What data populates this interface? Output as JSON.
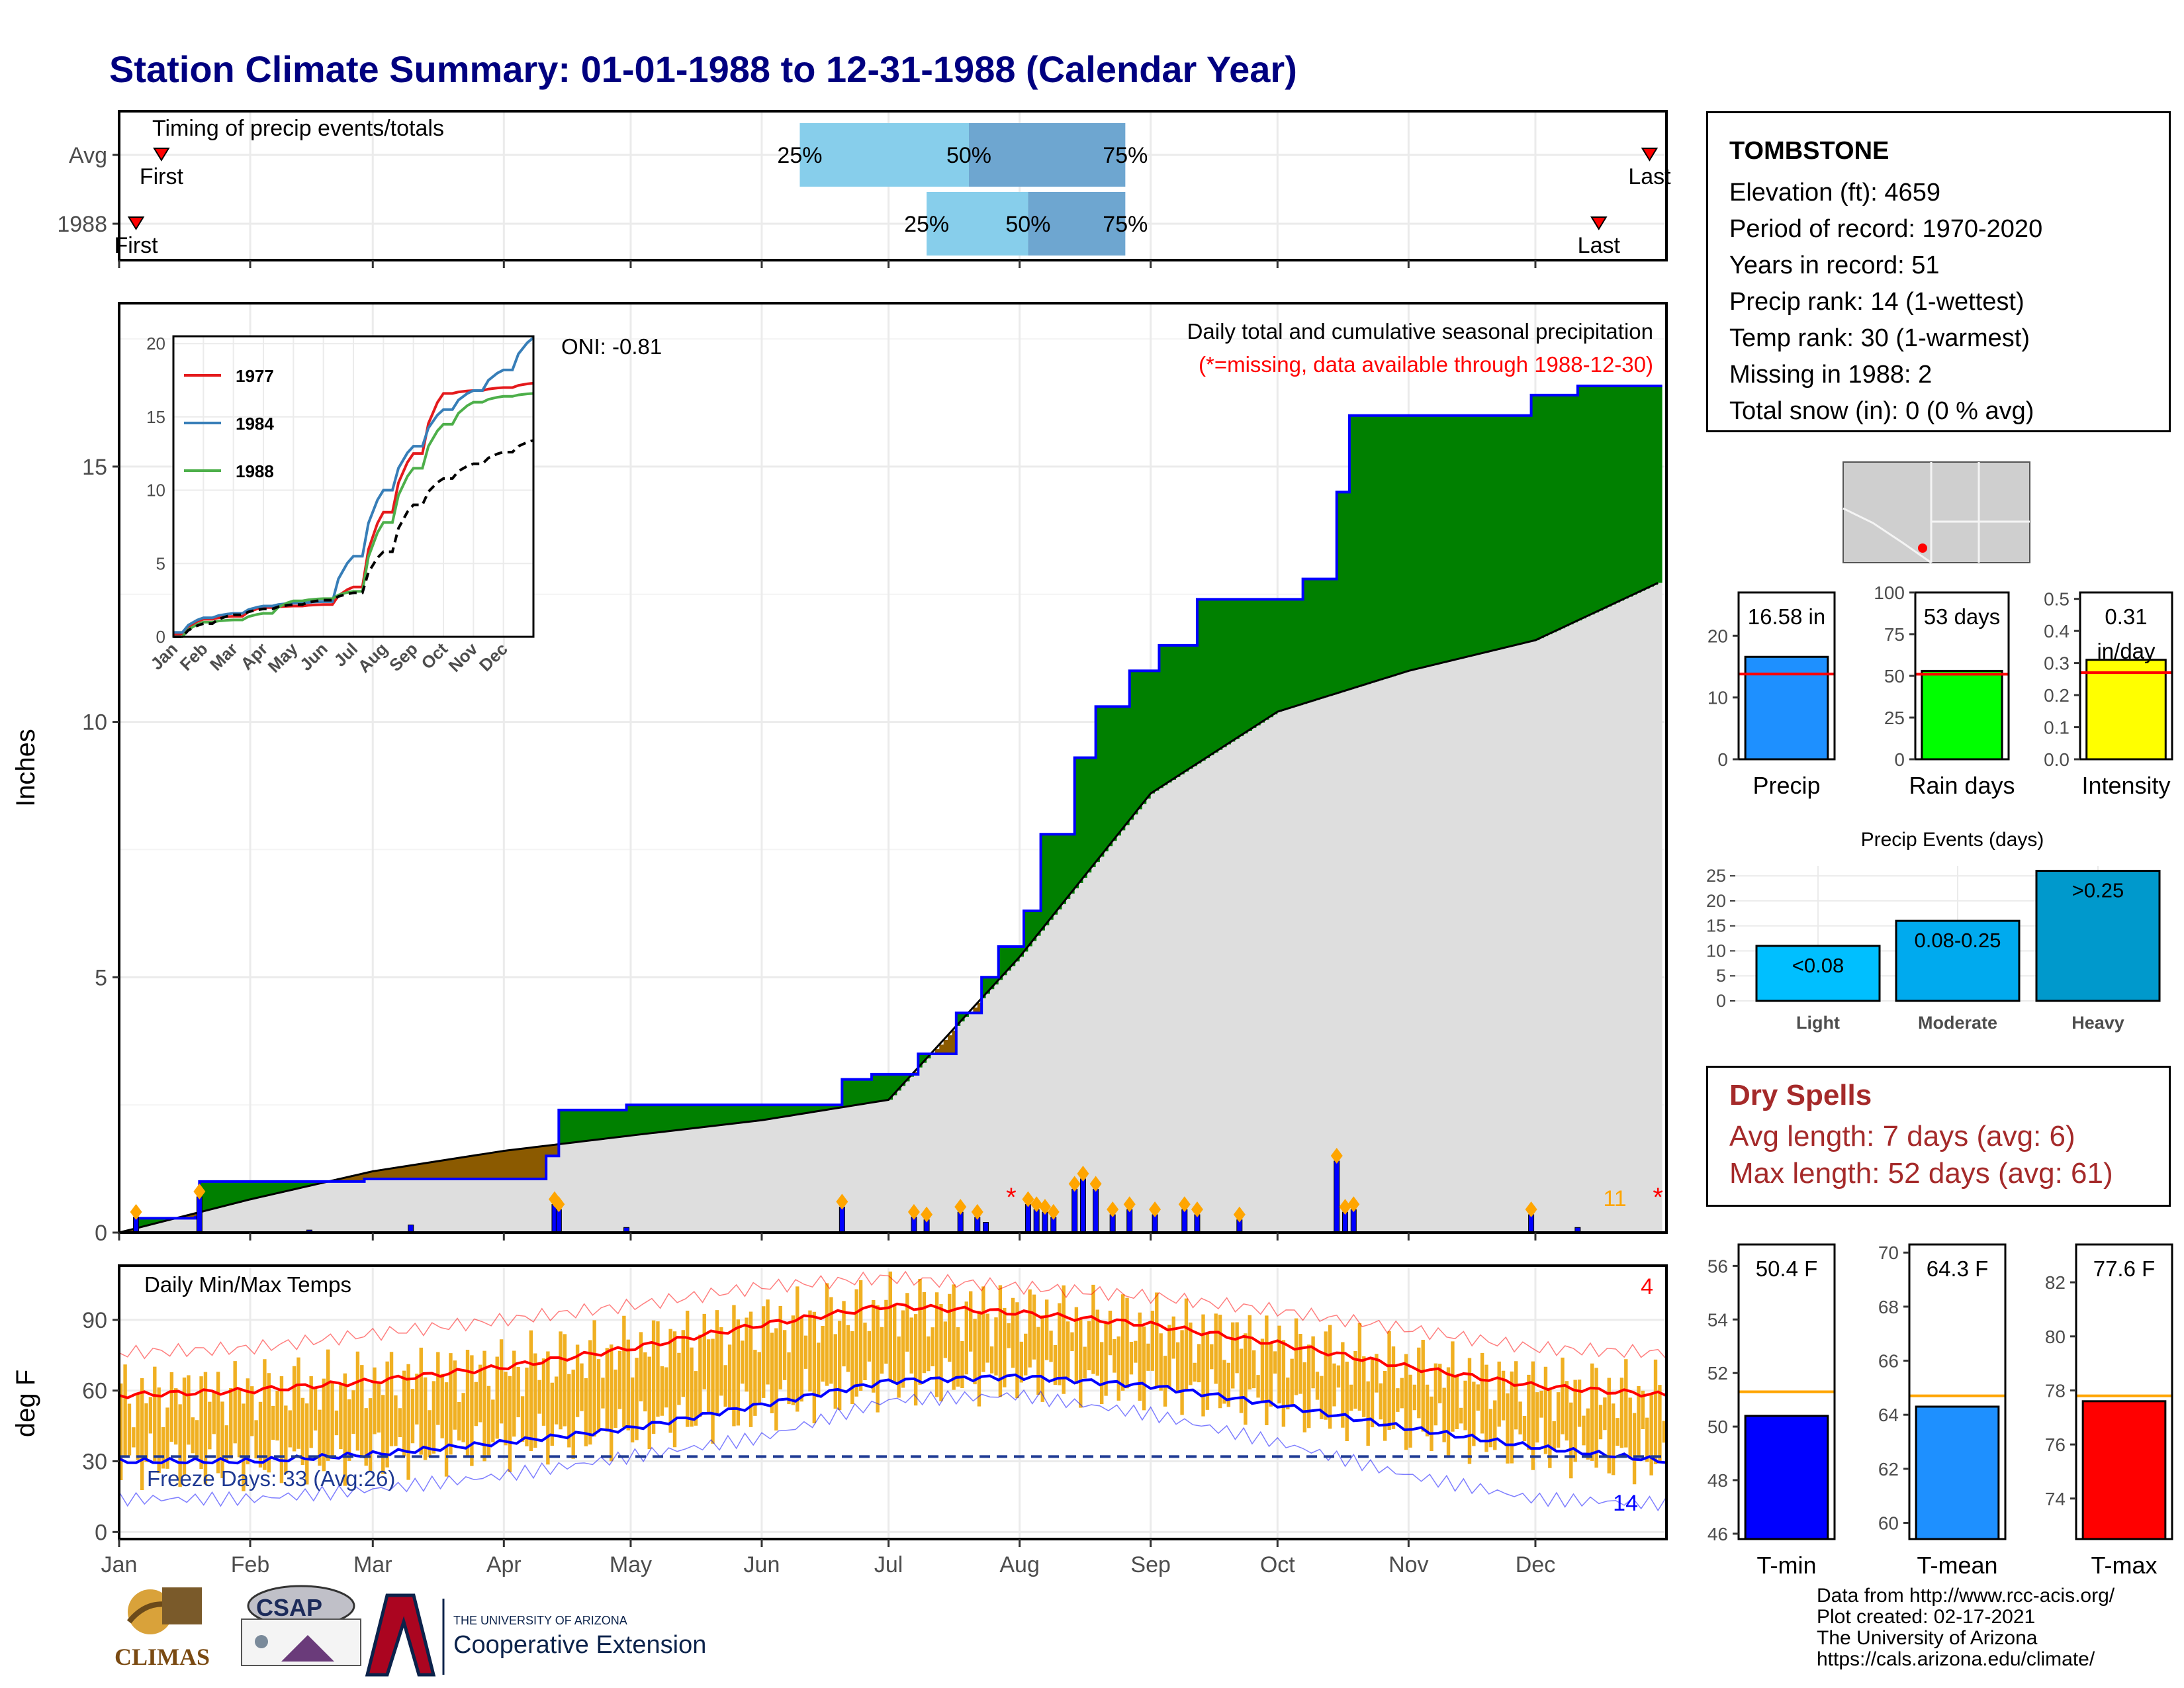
{
  "title": "Station Climate Summary: 01-01-1988 to 12-31-1988 (Calendar Year)",
  "timing_panel": {
    "title": "Timing of precip events/totals",
    "rows": [
      {
        "label": "Avg",
        "first_label": "First",
        "last_label": "Last",
        "first_date": "1988-01-11",
        "last_date": "1988-12-28",
        "p25": "1988-06-10",
        "p50": "1988-07-20",
        "p75": "1988-08-26",
        "p25_label": "25%",
        "p50_label": "50%",
        "p75_label": "75%"
      },
      {
        "label": "1988",
        "first_label": "First",
        "last_label": "Last",
        "first_date": "1988-01-05",
        "last_date": "1988-12-16",
        "p25": "1988-07-10",
        "p50": "1988-08-03",
        "p75": "1988-08-26",
        "p25_label": "25%",
        "p50_label": "50%",
        "p75_label": "75%"
      }
    ],
    "colors": {
      "light": "#87ceeb",
      "dark": "#6ea6d0",
      "marker": "#ff0000"
    }
  },
  "precip_panel": {
    "ylabel": "Inches",
    "annotation_title": "Daily total and cumulative seasonal precipitation",
    "annotation_note": "(*=missing, data available through 1988-12-30)",
    "oni": "ONI: -0.81",
    "corner_count": "11",
    "star": "*",
    "colors": {
      "wet": "#008000",
      "dry": "#8b5a00",
      "normal": "#dedede",
      "line": "#0000ff",
      "daily": "#0000ff",
      "marker": "#ffa500",
      "missing": "#ff0000"
    }
  },
  "inset_panel": {
    "legend": [
      "1977",
      "1984",
      "1988"
    ],
    "colors": {
      "1977": "#e41a1c",
      "1984": "#377eb8",
      "1988": "#4daf4a",
      "avg": "#000000"
    }
  },
  "temp_panel": {
    "title": "Daily Min/Max Temps",
    "ylabel": "deg F",
    "freeze": "Freeze Days: 33 (Avg:26)",
    "count_hot": "4",
    "count_cold": "14",
    "colors": {
      "bar": "#f0b022",
      "max": "#ff0000",
      "min": "#0000ff",
      "freeze": "#1f3a93"
    }
  },
  "station": {
    "name": "TOMBSTONE",
    "elevation": "Elevation (ft): 4659",
    "period": "Period of record: 1970-2020",
    "years": "Years in record: 51",
    "precip_rank": "Precip rank: 14 (1-wettest)",
    "temp_rank": "Temp rank: 30 (1-warmest)",
    "missing": "Missing in 1988: 2",
    "snow": "Total snow (in): 0 (0 % avg)"
  },
  "dry_spells": {
    "title": "Dry Spells",
    "avg": "Avg length: 7 days (avg: 6)",
    "max": "Max length: 52 days (avg: 61)"
  },
  "footer": {
    "line1": "Data from http://www.rcc-acis.org/",
    "line2": "Plot created: 02-17-2021",
    "line3": "The University of Arizona",
    "line4": "https://cals.arizona.edu/climate/"
  },
  "logos": {
    "climas": "CLIMAS",
    "csap": "CSAP",
    "ua_small": "THE UNIVERSITY OF ARIZONA",
    "ua_big": "Cooperative Extension"
  },
  "chart_data": [
    {
      "type": "bar",
      "name": "timing",
      "x_axis": "date",
      "categories": [
        "Avg",
        "1988"
      ],
      "xlim": [
        "1988-01-01",
        "1988-12-31"
      ],
      "series": [
        {
          "first": "1988-01-11",
          "p25": "1988-06-10",
          "p50": "1988-07-20",
          "p75": "1988-08-26",
          "last": "1988-12-28"
        },
        {
          "first": "1988-01-05",
          "p25": "1988-07-10",
          "p50": "1988-08-03",
          "p75": "1988-08-26",
          "last": "1988-12-16"
        }
      ]
    },
    {
      "type": "area",
      "name": "cumulative-precip",
      "ylabel": "Inches",
      "ylim": [
        0,
        18.2
      ],
      "yticks": [
        0,
        5,
        10,
        15
      ],
      "xticks": [
        "Jan",
        "Feb",
        "Mar",
        "Apr",
        "May",
        "Jun",
        "Jul",
        "Aug",
        "Sep",
        "Oct",
        "Nov",
        "Dec"
      ],
      "normal_cumulative_by_month_start": [
        0,
        0.65,
        1.2,
        1.6,
        1.9,
        2.2,
        2.6,
        5.4,
        8.6,
        10.2,
        11.0,
        11.6,
        12.8
      ],
      "observed_cumulative": [
        {
          "date": "1988-01-01",
          "value": 0
        },
        {
          "date": "1988-01-05",
          "value": 0.28
        },
        {
          "date": "1988-01-19",
          "value": 0.3
        },
        {
          "date": "1988-01-20",
          "value": 1.0
        },
        {
          "date": "1988-02-28",
          "value": 1.05
        },
        {
          "date": "1988-04-11",
          "value": 1.5
        },
        {
          "date": "1988-04-14",
          "value": 2.4
        },
        {
          "date": "1988-04-30",
          "value": 2.5
        },
        {
          "date": "1988-06-20",
          "value": 3.0
        },
        {
          "date": "1988-06-27",
          "value": 3.1
        },
        {
          "date": "1988-07-08",
          "value": 3.5
        },
        {
          "date": "1988-07-17",
          "value": 4.3
        },
        {
          "date": "1988-07-23",
          "value": 5.0
        },
        {
          "date": "1988-07-27",
          "value": 5.6
        },
        {
          "date": "1988-08-02",
          "value": 6.3
        },
        {
          "date": "1988-08-06",
          "value": 7.8
        },
        {
          "date": "1988-08-14",
          "value": 9.3
        },
        {
          "date": "1988-08-19",
          "value": 10.3
        },
        {
          "date": "1988-08-27",
          "value": 11.0
        },
        {
          "date": "1988-09-03",
          "value": 11.5
        },
        {
          "date": "1988-09-12",
          "value": 12.4
        },
        {
          "date": "1988-10-07",
          "value": 12.8
        },
        {
          "date": "1988-10-15",
          "value": 14.5
        },
        {
          "date": "1988-10-18",
          "value": 16.0
        },
        {
          "date": "1988-11-30",
          "value": 16.4
        },
        {
          "date": "1988-12-11",
          "value": 16.58
        },
        {
          "date": "1988-12-30",
          "value": 16.58
        }
      ],
      "daily_events": [
        {
          "date": "1988-01-05",
          "value": 0.3
        },
        {
          "date": "1988-01-20",
          "value": 0.7
        },
        {
          "date": "1988-02-15",
          "value": 0.05
        },
        {
          "date": "1988-03-10",
          "value": 0.15
        },
        {
          "date": "1988-04-13",
          "value": 0.55
        },
        {
          "date": "1988-04-14",
          "value": 0.45
        },
        {
          "date": "1988-04-30",
          "value": 0.1
        },
        {
          "date": "1988-06-20",
          "value": 0.5
        },
        {
          "date": "1988-07-07",
          "value": 0.3
        },
        {
          "date": "1988-07-10",
          "value": 0.25
        },
        {
          "date": "1988-07-18",
          "value": 0.4
        },
        {
          "date": "1988-07-22",
          "value": 0.3
        },
        {
          "date": "1988-07-24",
          "value": 0.2
        },
        {
          "date": "1988-08-03",
          "value": 0.55
        },
        {
          "date": "1988-08-05",
          "value": 0.45
        },
        {
          "date": "1988-08-07",
          "value": 0.4
        },
        {
          "date": "1988-08-09",
          "value": 0.3
        },
        {
          "date": "1988-08-14",
          "value": 0.85
        },
        {
          "date": "1988-08-16",
          "value": 1.05
        },
        {
          "date": "1988-08-19",
          "value": 0.85
        },
        {
          "date": "1988-08-23",
          "value": 0.35
        },
        {
          "date": "1988-08-27",
          "value": 0.45
        },
        {
          "date": "1988-09-02",
          "value": 0.35
        },
        {
          "date": "1988-09-09",
          "value": 0.45
        },
        {
          "date": "1988-09-12",
          "value": 0.35
        },
        {
          "date": "1988-09-22",
          "value": 0.25
        },
        {
          "date": "1988-10-15",
          "value": 1.4
        },
        {
          "date": "1988-10-17",
          "value": 0.4
        },
        {
          "date": "1988-10-19",
          "value": 0.45
        },
        {
          "date": "1988-11-30",
          "value": 0.35
        },
        {
          "date": "1988-12-11",
          "value": 0.1
        }
      ],
      "missing_days": [
        "1988-07-30",
        "1988-12-30"
      ]
    },
    {
      "type": "line",
      "name": "inset-cumulative",
      "xticks": [
        "Jan",
        "Feb",
        "Mar",
        "Apr",
        "May",
        "Jun",
        "Jul",
        "Aug",
        "Sep",
        "Oct",
        "Nov",
        "Dec"
      ],
      "yticks": [
        0,
        5,
        10,
        15,
        20
      ],
      "ylim": [
        0,
        20.5
      ],
      "series": [
        {
          "name": "1977",
          "values": [
            0.2,
            1.2,
            1.4,
            2.0,
            2.1,
            2.2,
            3.4,
            8.5,
            12.5,
            16.6,
            16.8,
            17.0,
            17.3
          ]
        },
        {
          "name": "1984",
          "values": [
            0.3,
            1.3,
            1.6,
            2.1,
            2.3,
            2.4,
            5.5,
            10.0,
            13.0,
            15.5,
            16.8,
            18.2,
            20.4
          ]
        },
        {
          "name": "1988",
          "values": [
            0.0,
            1.0,
            1.15,
            1.6,
            2.45,
            2.6,
            3.1,
            7.8,
            11.5,
            14.5,
            16.0,
            16.4,
            16.6
          ]
        },
        {
          "values": [
            0,
            0.9,
            1.5,
            1.9,
            2.2,
            2.5,
            3.0,
            5.8,
            9.0,
            10.8,
            11.8,
            12.6,
            13.4
          ]
        }
      ]
    },
    {
      "type": "bar",
      "name": "daily-temps",
      "ylabel": "deg F",
      "ylim": [
        -3,
        113
      ],
      "yticks": [
        0,
        30,
        60,
        90
      ],
      "xticks": [
        "Jan",
        "Feb",
        "Mar",
        "Apr",
        "May",
        "Jun",
        "Jul",
        "Aug",
        "Sep",
        "Oct",
        "Nov",
        "Dec"
      ],
      "freeze_line": 32,
      "max_by_month_start": [
        58,
        60,
        64,
        70,
        78,
        88,
        96,
        93,
        88,
        80,
        70,
        62,
        58
      ],
      "min_by_month_start": [
        30,
        30,
        33,
        38,
        44,
        54,
        64,
        66,
        62,
        54,
        44,
        36,
        30
      ],
      "record_max_by_month_start": [
        76,
        78,
        84,
        90,
        96,
        104,
        108,
        104,
        100,
        94,
        86,
        78,
        76
      ],
      "record_min_by_month_start": [
        14,
        14,
        18,
        24,
        32,
        40,
        56,
        58,
        50,
        38,
        24,
        14,
        12
      ]
    },
    {
      "type": "bar",
      "name": "precip-summary",
      "categories": [
        "Precip",
        "Rain days",
        "Intensity"
      ],
      "values": [
        16.58,
        53,
        0.31
      ],
      "averages": [
        13.8,
        51,
        0.27
      ],
      "labels": [
        "16.58 in",
        "53 days",
        "0.31",
        "in/day"
      ],
      "ylims": [
        [
          0,
          27
        ],
        [
          0,
          100
        ],
        [
          0,
          0.52
        ]
      ],
      "yticks": [
        [
          0,
          10,
          20
        ],
        [
          0,
          25,
          50,
          75,
          100
        ],
        [
          0.0,
          0.1,
          0.2,
          0.3,
          0.4,
          0.5
        ]
      ],
      "colors": [
        "#1e90ff",
        "#00ff00",
        "#ffff00"
      ]
    },
    {
      "type": "bar",
      "name": "precip-events",
      "title": "Precip Events (days)",
      "categories": [
        "Light",
        "Moderate",
        "Heavy"
      ],
      "values": [
        11,
        16,
        26
      ],
      "labels": [
        "<0.08",
        "0.08-0.25",
        ">0.25"
      ],
      "ylim": [
        0,
        27
      ],
      "yticks": [
        0,
        5,
        10,
        15,
        20,
        25
      ],
      "colors": [
        "#00bfff",
        "#00aaee",
        "#0099cc"
      ]
    },
    {
      "type": "bar",
      "name": "temp-summary",
      "categories": [
        "T-min",
        "T-mean",
        "T-max"
      ],
      "values": [
        50.4,
        64.3,
        77.6
      ],
      "averages": [
        51.3,
        64.7,
        77.8
      ],
      "labels": [
        "50.4 F",
        "64.3 F",
        "77.6 F"
      ],
      "ylims": [
        [
          45.8,
          56.8
        ],
        [
          59.4,
          70.3
        ],
        [
          72.5,
          83.4
        ]
      ],
      "yticks": [
        [
          46,
          48,
          50,
          52,
          54,
          56
        ],
        [
          60,
          62,
          64,
          66,
          68,
          70
        ],
        [
          74,
          76,
          78,
          80,
          82
        ]
      ],
      "colors": [
        "#0000ff",
        "#1e90ff",
        "#ff0000"
      ]
    }
  ]
}
